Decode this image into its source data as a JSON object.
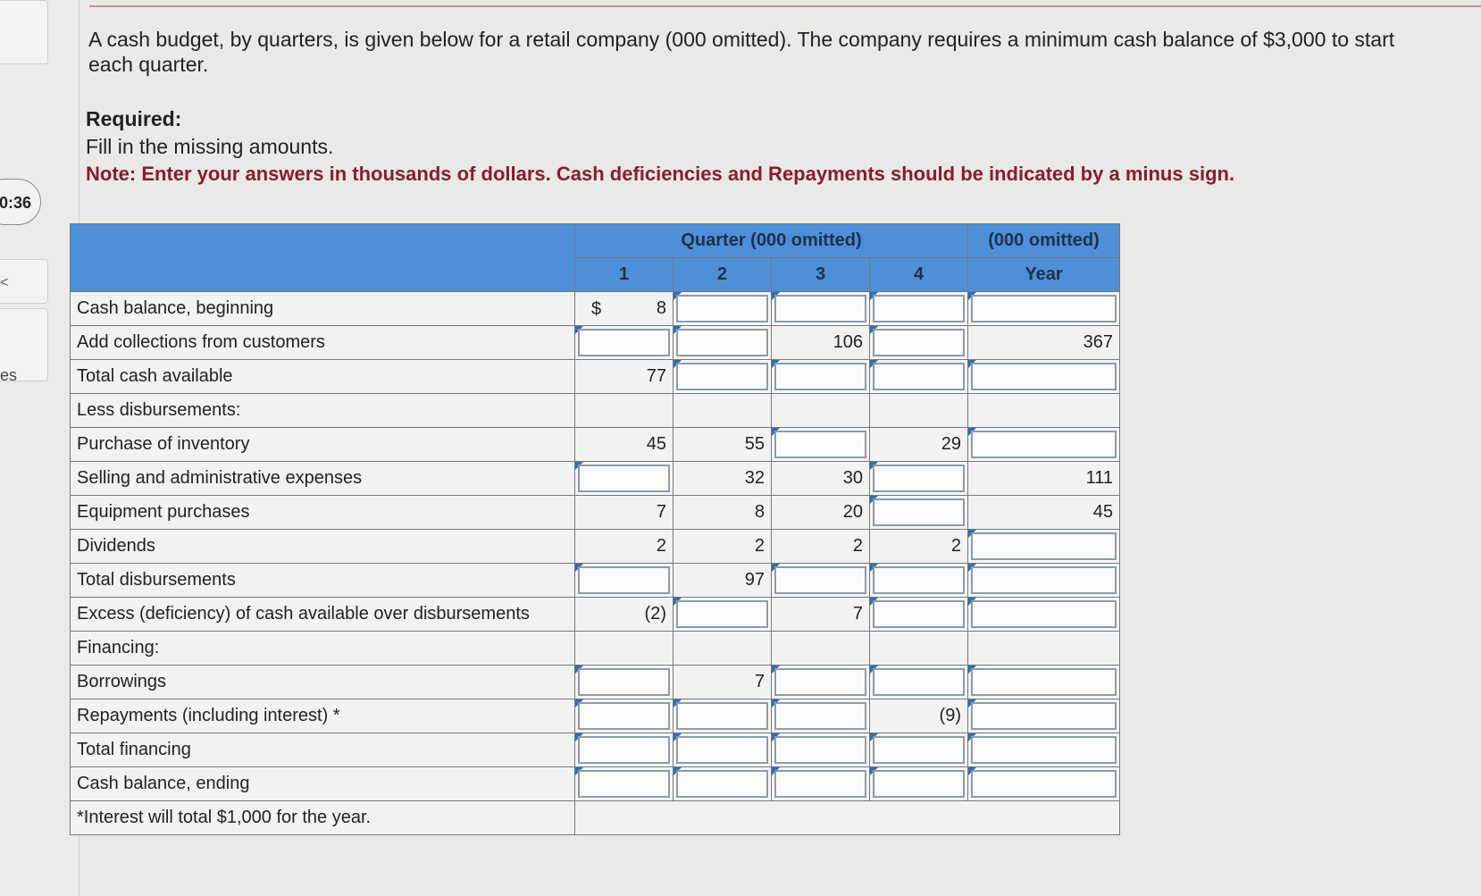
{
  "sidebar": {
    "timer": "0:36",
    "label_fragment": "es",
    "arrow_glyph": "<"
  },
  "intro": "A cash budget, by quarters, is given below for a retail company (000 omitted). The company requires a minimum cash balance of $3,000 to start each quarter.",
  "required_heading": "Required:",
  "required_text": "Fill in the missing amounts.",
  "note": "Note: Enter your answers in thousands of dollars. Cash deficiencies and Repayments should be indicated by a minus sign.",
  "table": {
    "header_quarter": "Quarter (000 omitted)",
    "header_year_top": "(000 omitted)",
    "quarters": [
      "1",
      "2",
      "3",
      "4"
    ],
    "year_label": "Year",
    "dollar_sign": "$",
    "rows": [
      {
        "label": "Cash balance, beginning",
        "q1": "8",
        "q2": "",
        "q3": "",
        "q4": "",
        "year": ""
      },
      {
        "label": "Add collections from customers",
        "q1": "",
        "q2": "",
        "q3": "106",
        "q4": "",
        "year": "367"
      },
      {
        "label": "Total cash available",
        "q1": "77",
        "q2": "",
        "q3": "",
        "q4": "",
        "year": ""
      },
      {
        "label": "Less disbursements:",
        "q1": "",
        "q2": "",
        "q3": "",
        "q4": "",
        "year": ""
      },
      {
        "label": "Purchase of inventory",
        "q1": "45",
        "q2": "55",
        "q3": "",
        "q4": "29",
        "year": ""
      },
      {
        "label": "Selling and administrative expenses",
        "q1": "",
        "q2": "32",
        "q3": "30",
        "q4": "",
        "year": "111"
      },
      {
        "label": "Equipment purchases",
        "q1": "7",
        "q2": "8",
        "q3": "20",
        "q4": "",
        "year": "45"
      },
      {
        "label": "Dividends",
        "q1": "2",
        "q2": "2",
        "q3": "2",
        "q4": "2",
        "year": ""
      },
      {
        "label": "Total disbursements",
        "q1": "",
        "q2": "97",
        "q3": "",
        "q4": "",
        "year": ""
      },
      {
        "label": "Excess (deficiency) of cash available over disbursements",
        "q1": "(2)",
        "q2": "",
        "q3": "7",
        "q4": "",
        "year": ""
      },
      {
        "label": "Financing:",
        "q1": "",
        "q2": "",
        "q3": "",
        "q4": "",
        "year": ""
      },
      {
        "label": "Borrowings",
        "q1": "",
        "q2": "7",
        "q3": "",
        "q4": "",
        "year": ""
      },
      {
        "label": "Repayments (including interest) *",
        "q1": "",
        "q2": "",
        "q3": "",
        "q4": "(9)",
        "year": ""
      },
      {
        "label": "Total financing",
        "q1": "",
        "q2": "",
        "q3": "",
        "q4": "",
        "year": ""
      },
      {
        "label": "Cash balance, ending",
        "q1": "",
        "q2": "",
        "q3": "",
        "q4": "",
        "year": ""
      }
    ],
    "footnote": "*Interest will total $1,000 for the year."
  }
}
